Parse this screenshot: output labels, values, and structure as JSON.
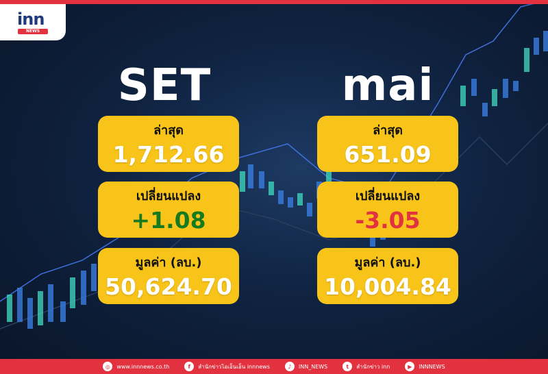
{
  "brand": {
    "logo_text": "inn",
    "logo_sub": "NEWS",
    "accent": "#e2323f",
    "card_color": "#f8c41a"
  },
  "set": {
    "title": "SET",
    "latest_label": "ล่าสุด",
    "latest": "1,712.66",
    "change_label": "เปลี่ยนแปลง",
    "change": "+1.08",
    "value_label": "มูลค่า (ลบ.)",
    "value": "50,624.70"
  },
  "mai": {
    "title": "mai",
    "latest_label": "ล่าสุด",
    "latest": "651.09",
    "change_label": "เปลี่ยนแปลง",
    "change": "-3.05",
    "value_label": "มูลค่า (ลบ.)",
    "value": "10,004.84"
  },
  "footer": [
    {
      "icon": "globe-icon",
      "text": "www.innnews.co.th"
    },
    {
      "icon": "facebook-icon",
      "text": "สำนักข่าวไอเอ็นเอ็น innnews"
    },
    {
      "icon": "tiktok-icon",
      "text": "INN_NEWS"
    },
    {
      "icon": "twitter-icon",
      "text": "สำนักข่าว inn"
    },
    {
      "icon": "youtube-icon",
      "text": "INNNEWS"
    }
  ]
}
